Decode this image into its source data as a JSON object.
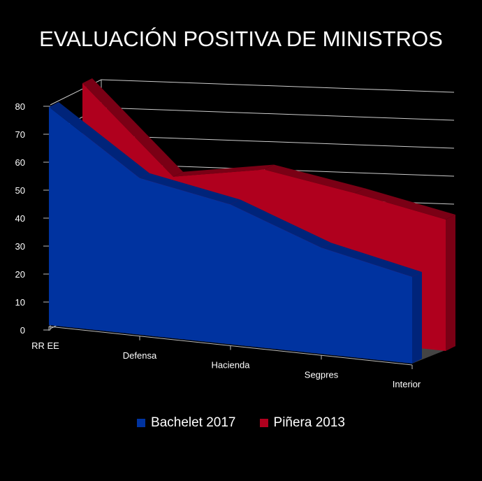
{
  "chart_data": {
    "type": "area",
    "title": "EVALUACIÓN POSITIVA DE MINISTROS",
    "categories": [
      "RR EE",
      "Defensa",
      "Hacienda",
      "Segpres",
      "Interior"
    ],
    "series": [
      {
        "name": "Bachelet 2017",
        "values": [
          78,
          56,
          50,
          38,
          31
        ],
        "color": "#0033a0"
      },
      {
        "name": "Piñera 2013",
        "values": [
          82,
          52,
          58,
          53,
          47
        ],
        "color": "#b0001e"
      }
    ],
    "yticks": [
      "0",
      "10",
      "20",
      "30",
      "40",
      "50",
      "60",
      "70",
      "80"
    ],
    "ylim": [
      0,
      80
    ],
    "xlabel": "",
    "ylabel": "",
    "grid": true,
    "legend": "bottom",
    "style": "3d"
  }
}
